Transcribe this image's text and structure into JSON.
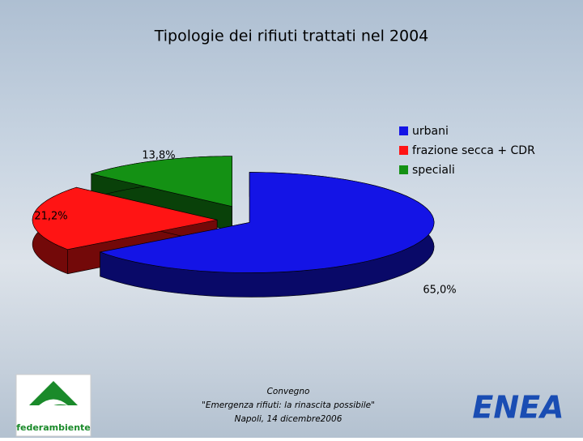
{
  "chart_data": {
    "type": "pie",
    "title": "Tipologie dei rifiuti trattati nel 2004",
    "categories": [
      "urbani",
      "frazione secca + CDR",
      "speciali"
    ],
    "values": [
      65.0,
      21.2,
      13.8
    ],
    "value_labels": [
      "65,0%",
      "21,2%",
      "13,8%"
    ],
    "colors": [
      "#1414e6",
      "#ff1414",
      "#149114"
    ],
    "legend": "top-right"
  },
  "footer": {
    "lines": [
      "Convegno",
      "\"Emergenza rifiuti: la rinascita possibile\"",
      "Napoli, 14 dicembre2006"
    ],
    "logos": [
      "federambiente",
      "ENEA"
    ]
  }
}
